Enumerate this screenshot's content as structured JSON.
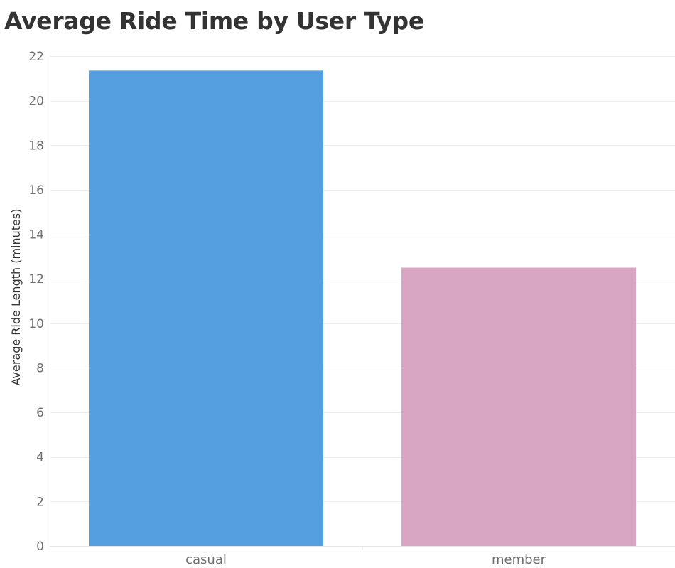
{
  "chart_data": {
    "type": "bar",
    "title": "Average Ride Time by User Type",
    "xlabel": "",
    "ylabel": "Average Ride Length (minutes)",
    "categories": [
      "casual",
      "member"
    ],
    "values": [
      21.35,
      12.5
    ],
    "ylim": [
      0,
      22
    ],
    "yticks": [
      0,
      2,
      4,
      6,
      8,
      10,
      12,
      14,
      16,
      18,
      20,
      22
    ],
    "colors": [
      "#559ee0",
      "#d8a6c2"
    ],
    "grid": true,
    "legend": "none"
  }
}
